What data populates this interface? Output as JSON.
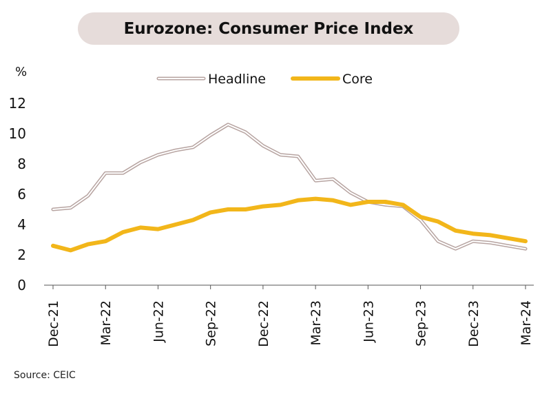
{
  "chart_data": {
    "type": "line",
    "title": "Eurozone: Consumer Price Index",
    "ylabel": "%",
    "xlabel": "",
    "ylim": [
      0,
      12
    ],
    "yticks": [
      0,
      2,
      4,
      6,
      8,
      10,
      12
    ],
    "grid": false,
    "legend": "top-center",
    "months": [
      "Dec-21",
      "Jan-22",
      "Feb-22",
      "Mar-22",
      "Apr-22",
      "May-22",
      "Jun-22",
      "Jul-22",
      "Aug-22",
      "Sep-22",
      "Oct-22",
      "Nov-22",
      "Dec-22",
      "Jan-23",
      "Feb-23",
      "Mar-23",
      "Apr-23",
      "May-23",
      "Jun-23",
      "Jul-23",
      "Aug-23",
      "Sep-23",
      "Oct-23",
      "Nov-23",
      "Dec-23",
      "Jan-24",
      "Feb-24",
      "Mar-24"
    ],
    "xtick_labels": [
      "Dec-21",
      "Mar-22",
      "Jun-22",
      "Sep-22",
      "Dec-22",
      "Mar-23",
      "Jun-23",
      "Sep-23",
      "Dec-23",
      "Mar-24"
    ],
    "series": [
      {
        "name": "Headline",
        "color": "#b7a4a1",
        "style": "double-outline",
        "values": [
          5.0,
          5.1,
          5.9,
          7.4,
          7.4,
          8.1,
          8.6,
          8.9,
          9.1,
          9.9,
          10.6,
          10.1,
          9.2,
          8.6,
          8.5,
          6.9,
          7.0,
          6.1,
          5.5,
          5.3,
          5.2,
          4.3,
          2.9,
          2.4,
          2.9,
          2.8,
          2.6,
          2.4
        ]
      },
      {
        "name": "Core",
        "color": "#f2b61a",
        "style": "thick",
        "values": [
          2.6,
          2.3,
          2.7,
          2.9,
          3.5,
          3.8,
          3.7,
          4.0,
          4.3,
          4.8,
          5.0,
          5.0,
          5.2,
          5.3,
          5.6,
          5.7,
          5.6,
          5.3,
          5.5,
          5.5,
          5.3,
          4.5,
          4.2,
          3.6,
          3.4,
          3.3,
          3.1,
          2.9
        ]
      }
    ]
  },
  "source_text": "Source: CEIC"
}
